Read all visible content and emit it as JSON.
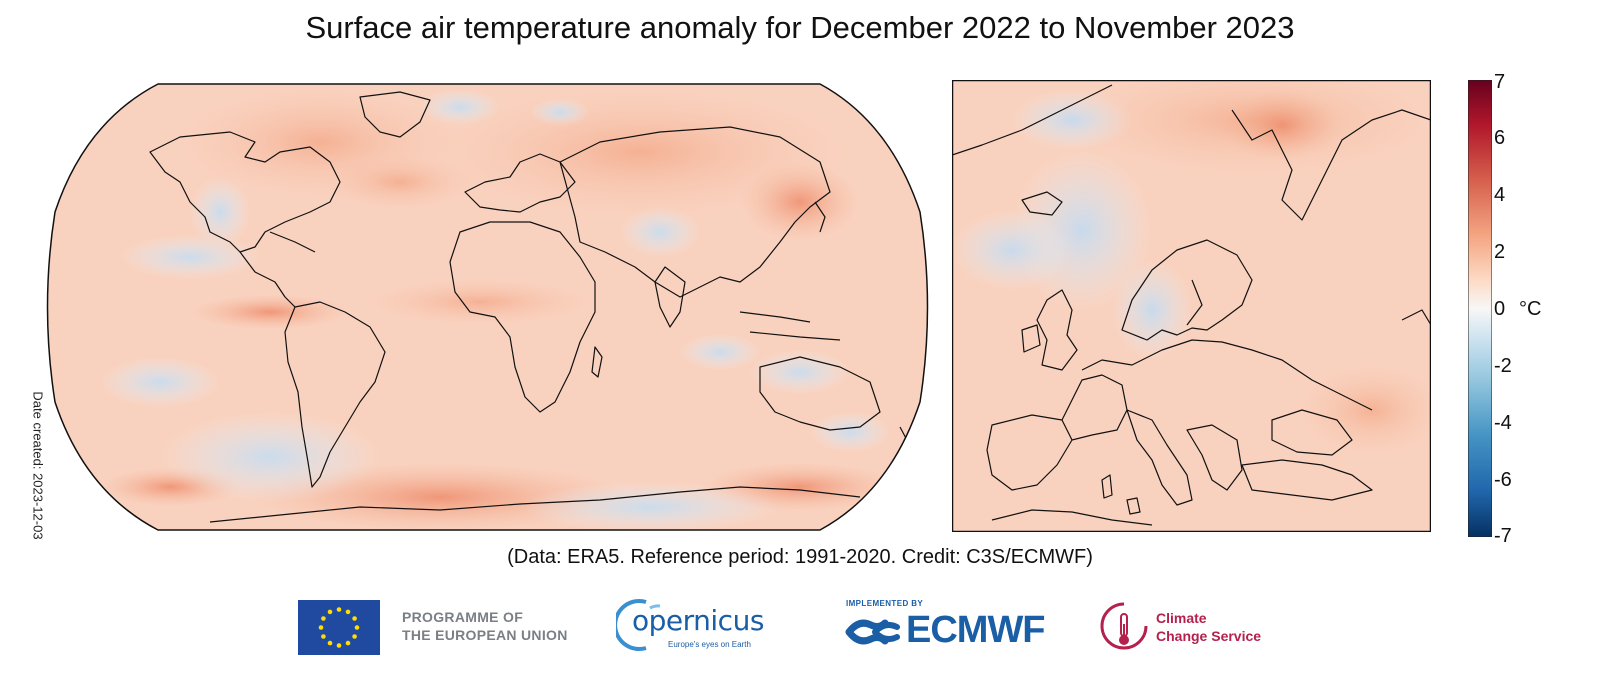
{
  "title": "Surface air temperature anomaly for December 2022 to November 2023",
  "date_created": "Date created: 2023-12-03",
  "credit": "(Data: ERA5.  Reference period: 1991-2020.  Credit: C3S/ECMWF)",
  "colorbar": {
    "ticks": [
      "7",
      "6",
      "4",
      "2",
      "0",
      "-2",
      "-4",
      "-6",
      "-7"
    ],
    "unit": "°C",
    "colors": [
      "#053061",
      "#2166ac",
      "#4393c3",
      "#92c5de",
      "#d1e5f0",
      "#f7f7f7",
      "#fddbc7",
      "#f4a582",
      "#d6604d",
      "#b2182b",
      "#67001f"
    ]
  },
  "maps": {
    "world": {
      "projection": "Robinson",
      "region": "Global"
    },
    "europe": {
      "region": "Europe"
    }
  },
  "logos": {
    "eu": {
      "line1": "PROGRAMME OF",
      "line2": "THE EUROPEAN UNION"
    },
    "copernicus": {
      "name": "opernicus",
      "tagline": "Europe's eyes on Earth"
    },
    "ecmwf": {
      "implemented_by": "IMPLEMENTED BY",
      "name": "ECMWF"
    },
    "c3s": {
      "line1": "Climate",
      "line2": "Change Service"
    }
  }
}
